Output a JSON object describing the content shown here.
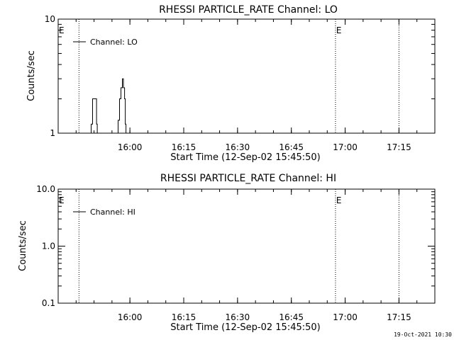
{
  "footer": {
    "timestamp": "19-Oct-2021 10:30"
  },
  "chart_data": [
    {
      "type": "line",
      "title": "RHESSI PARTICLE_RATE Channel: LO",
      "xlabel": "Start Time (12-Sep-02 15:45:50)",
      "ylabel": "Counts/sec",
      "yscale": "log",
      "ylim": [
        1,
        10
      ],
      "yticks": [
        "1",
        "10"
      ],
      "xlim_minutes": [
        -5.8,
        99.2
      ],
      "xticks": [
        "16:00",
        "16:15",
        "16:30",
        "16:45",
        "17:00",
        "17:15"
      ],
      "xtick_minutes": [
        14.2,
        29.2,
        44.2,
        59.2,
        74.2,
        89.2
      ],
      "marker_lines_minutes": [
        0,
        71.5,
        89.2
      ],
      "marker_labels": [
        "E",
        "E"
      ],
      "marker_label_minutes": [
        -5.8,
        71.5
      ],
      "legend": {
        "label": "Channel: LO",
        "position": "top-left"
      },
      "series": [
        {
          "name": "Channel: LO",
          "points": [
            [
              -5.8,
              1
            ],
            [
              3.4,
              1
            ],
            [
              3.4,
              1.2
            ],
            [
              3.8,
              1.2
            ],
            [
              3.8,
              2
            ],
            [
              4.9,
              2
            ],
            [
              4.9,
              1.2
            ],
            [
              5.1,
              1.2
            ],
            [
              5.1,
              1
            ],
            [
              10.9,
              1
            ],
            [
              10.9,
              1.3
            ],
            [
              11.3,
              1.3
            ],
            [
              11.3,
              2
            ],
            [
              11.7,
              2
            ],
            [
              11.7,
              2.5
            ],
            [
              12.1,
              2.5
            ],
            [
              12.1,
              3
            ],
            [
              12.4,
              3
            ],
            [
              12.4,
              2.5
            ],
            [
              12.7,
              2.5
            ],
            [
              12.7,
              2
            ],
            [
              12.9,
              2
            ],
            [
              12.9,
              1.2
            ],
            [
              13.1,
              1.2
            ],
            [
              13.1,
              1
            ],
            [
              99.2,
              1
            ]
          ]
        }
      ]
    },
    {
      "type": "line",
      "title": "RHESSI PARTICLE_RATE Channel: HI",
      "xlabel": "Start Time (12-Sep-02 15:45:50)",
      "ylabel": "Counts/sec",
      "yscale": "log",
      "ylim": [
        0.1,
        10
      ],
      "yticks": [
        "0.1",
        "1.0",
        "10.0"
      ],
      "xlim_minutes": [
        -5.8,
        99.2
      ],
      "xticks": [
        "16:00",
        "16:15",
        "16:30",
        "16:45",
        "17:00",
        "17:15"
      ],
      "xtick_minutes": [
        14.2,
        29.2,
        44.2,
        59.2,
        74.2,
        89.2
      ],
      "marker_lines_minutes": [
        0,
        71.5,
        89.2
      ],
      "marker_labels": [
        "E",
        "E"
      ],
      "marker_label_minutes": [
        -5.8,
        71.5
      ],
      "legend": {
        "label": "Channel: HI",
        "position": "top-left"
      },
      "series": [
        {
          "name": "Channel: HI",
          "points": []
        }
      ]
    }
  ]
}
